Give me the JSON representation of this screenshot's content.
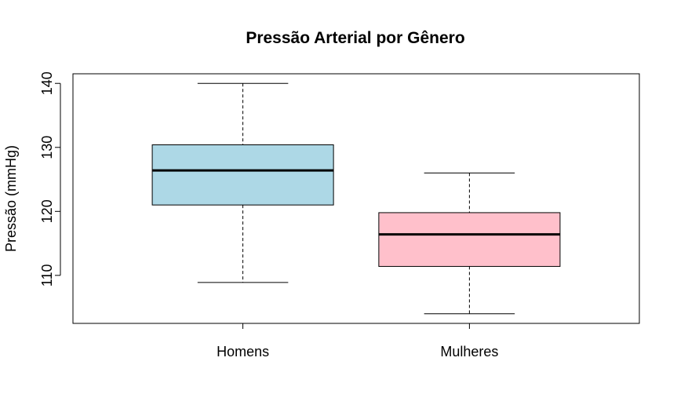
{
  "chart_data": {
    "type": "boxplot",
    "title": "Pressão Arterial por Gênero",
    "xlabel": "",
    "ylabel": "Pressão (mmHg)",
    "ylim": [
      102.5,
      141.5
    ],
    "yticks": [
      110,
      120,
      130,
      140
    ],
    "grid": false,
    "categories": [
      "Homens",
      "Mulheres"
    ],
    "boxes": [
      {
        "category": "Homens",
        "min": 108.9,
        "q1": 121.0,
        "median": 126.4,
        "q3": 130.4,
        "max": 140.0,
        "color": "#ADD8E6"
      },
      {
        "category": "Mulheres",
        "min": 104.0,
        "q1": 111.4,
        "median": 116.4,
        "q3": 119.8,
        "max": 126.0,
        "color": "#FFC0CB"
      }
    ]
  }
}
